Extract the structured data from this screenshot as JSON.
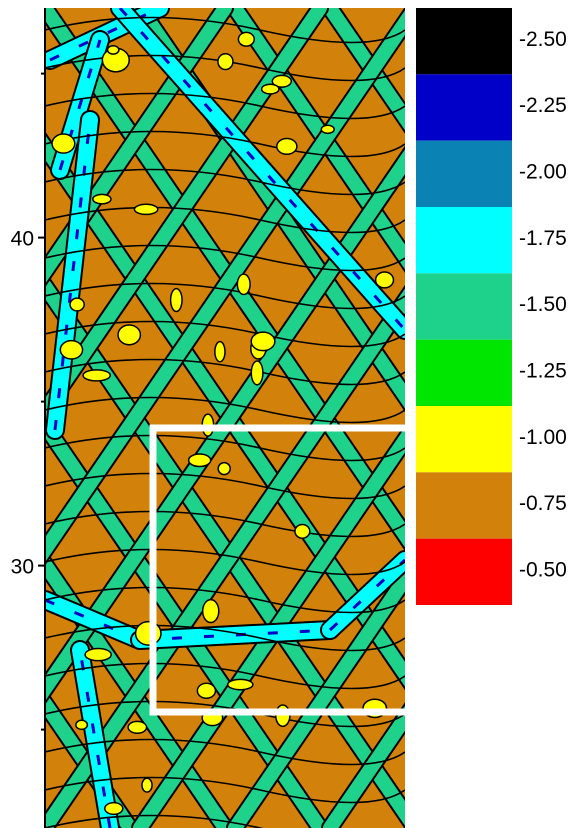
{
  "chart_data": {
    "type": "heatmap",
    "title": "",
    "xlabel": "",
    "ylabel": "",
    "y_ticks": [
      40,
      30
    ],
    "ylim": [
      22,
      47
    ],
    "colorbar": {
      "levels": [
        "-2.50",
        "-2.25",
        "-2.00",
        "-1.75",
        "-1.50",
        "-1.25",
        "-1.00",
        "-0.75",
        "-0.50"
      ],
      "bands": [
        {
          "from": -2.75,
          "to": -2.5,
          "color": "#000000"
        },
        {
          "from": -2.5,
          "to": -2.25,
          "color": "#0000c8"
        },
        {
          "from": -2.25,
          "to": -2.0,
          "color": "#0a82b4"
        },
        {
          "from": -2.0,
          "to": -1.75,
          "color": "#00ffff"
        },
        {
          "from": -1.75,
          "to": -1.5,
          "color": "#1ed28c"
        },
        {
          "from": -1.5,
          "to": -1.25,
          "color": "#00e600"
        },
        {
          "from": -1.25,
          "to": -1.0,
          "color": "#ffff00"
        },
        {
          "from": -1.0,
          "to": -0.75,
          "color": "#d2820a"
        },
        {
          "from": -0.75,
          "to": -0.5,
          "color": "#ff0000"
        }
      ]
    },
    "field": {
      "background_level": "-1.00 to -0.75",
      "ridge_level": "-1.75 to -1.50",
      "trough_level": "-2.00 to -1.75"
    },
    "annotation": "highlight rectangle (white frame) around lower-middle region"
  },
  "colors": {
    "background": "#d2820a",
    "cell_outline": "#000000",
    "ridge": "#1ed28c",
    "trough": "#00ffff",
    "core": "#0000c8",
    "spot": "#ffff00",
    "frame": "#ffffff"
  }
}
